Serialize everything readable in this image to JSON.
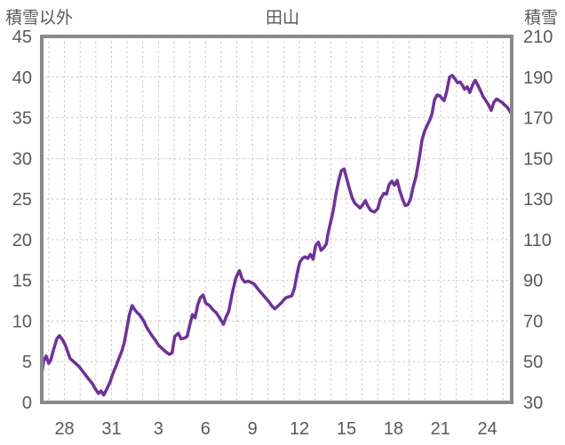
{
  "header": {
    "left_axis_title": "積雪以外",
    "chart_title": "田山",
    "right_axis_title": "積雪"
  },
  "chart_data": {
    "type": "line",
    "title": "田山",
    "grid": true,
    "legend_position": "none",
    "left_axis": {
      "title": "積雪以外",
      "range": [
        0,
        45
      ],
      "ticks": [
        45,
        40,
        35,
        30,
        25,
        20,
        15,
        10,
        5,
        0
      ]
    },
    "right_axis": {
      "title": "積雪",
      "range": [
        30,
        210
      ],
      "ticks": [
        210,
        190,
        170,
        150,
        130,
        110,
        90,
        70,
        50,
        30
      ]
    },
    "x_axis": {
      "range_days": [
        0,
        30
      ],
      "gridline_start_day": 0.45,
      "gridline_step_days": 1,
      "gridline_count": 30,
      "tick_labels": [
        "28",
        "31",
        "3",
        "6",
        "9",
        "12",
        "15",
        "18",
        "21",
        "24"
      ],
      "tick_days": [
        1.45,
        4.45,
        7.45,
        10.45,
        13.45,
        16.45,
        19.45,
        22.45,
        25.45,
        28.45
      ]
    },
    "colors": {
      "text": "#595959",
      "plot_border": "#898989",
      "gridline": "#c9c9c9",
      "line": "#7030a0",
      "background": "#ffffff"
    },
    "series": [
      {
        "name": "積雪",
        "color": "#7030a0",
        "points": [
          [
            0.0,
            3.5
          ],
          [
            0.11,
            5.0
          ],
          [
            0.28,
            5.7
          ],
          [
            0.45,
            4.8
          ],
          [
            0.57,
            5.2
          ],
          [
            0.79,
            6.7
          ],
          [
            0.96,
            7.8
          ],
          [
            1.13,
            8.2
          ],
          [
            1.36,
            7.6
          ],
          [
            1.53,
            6.9
          ],
          [
            1.81,
            5.4
          ],
          [
            2.09,
            4.9
          ],
          [
            2.38,
            4.4
          ],
          [
            2.66,
            3.7
          ],
          [
            2.94,
            3.0
          ],
          [
            3.23,
            2.3
          ],
          [
            3.4,
            1.7
          ],
          [
            3.62,
            1.1
          ],
          [
            3.79,
            1.4
          ],
          [
            3.96,
            0.9
          ],
          [
            4.19,
            1.8
          ],
          [
            4.36,
            2.5
          ],
          [
            4.53,
            3.5
          ],
          [
            4.75,
            4.5
          ],
          [
            4.92,
            5.4
          ],
          [
            5.09,
            6.2
          ],
          [
            5.26,
            7.3
          ],
          [
            5.43,
            9.0
          ],
          [
            5.6,
            10.8
          ],
          [
            5.77,
            11.9
          ],
          [
            5.94,
            11.4
          ],
          [
            6.11,
            11.0
          ],
          [
            6.23,
            10.8
          ],
          [
            6.34,
            10.5
          ],
          [
            6.51,
            10.0
          ],
          [
            6.68,
            9.3
          ],
          [
            6.9,
            8.6
          ],
          [
            7.07,
            8.1
          ],
          [
            7.3,
            7.5
          ],
          [
            7.47,
            7.0
          ],
          [
            7.7,
            6.6
          ],
          [
            7.92,
            6.2
          ],
          [
            8.15,
            5.9
          ],
          [
            8.32,
            6.1
          ],
          [
            8.49,
            8.1
          ],
          [
            8.72,
            8.5
          ],
          [
            8.89,
            7.8
          ],
          [
            9.11,
            7.9
          ],
          [
            9.28,
            8.1
          ],
          [
            9.45,
            9.5
          ],
          [
            9.62,
            10.8
          ],
          [
            9.79,
            10.4
          ],
          [
            9.96,
            12.0
          ],
          [
            10.13,
            12.9
          ],
          [
            10.3,
            13.2
          ],
          [
            10.47,
            12.2
          ],
          [
            10.7,
            11.9
          ],
          [
            10.92,
            11.4
          ],
          [
            11.15,
            11.0
          ],
          [
            11.38,
            10.3
          ],
          [
            11.6,
            9.6
          ],
          [
            11.77,
            10.5
          ],
          [
            11.94,
            11.2
          ],
          [
            12.17,
            13.5
          ],
          [
            12.39,
            15.3
          ],
          [
            12.62,
            16.2
          ],
          [
            12.79,
            15.2
          ],
          [
            12.96,
            14.8
          ],
          [
            13.19,
            14.9
          ],
          [
            13.41,
            14.7
          ],
          [
            13.58,
            14.5
          ],
          [
            13.81,
            13.9
          ],
          [
            14.04,
            13.4
          ],
          [
            14.26,
            12.9
          ],
          [
            14.49,
            12.4
          ],
          [
            14.71,
            11.8
          ],
          [
            14.88,
            11.5
          ],
          [
            15.11,
            11.9
          ],
          [
            15.28,
            12.2
          ],
          [
            15.45,
            12.6
          ],
          [
            15.62,
            12.9
          ],
          [
            15.79,
            13.0
          ],
          [
            15.96,
            13.1
          ],
          [
            16.13,
            14.0
          ],
          [
            16.3,
            15.8
          ],
          [
            16.47,
            17.2
          ],
          [
            16.64,
            17.7
          ],
          [
            16.81,
            17.9
          ],
          [
            16.98,
            17.7
          ],
          [
            17.15,
            18.2
          ],
          [
            17.32,
            17.6
          ],
          [
            17.49,
            19.3
          ],
          [
            17.66,
            19.7
          ],
          [
            17.83,
            18.7
          ],
          [
            18.0,
            19.0
          ],
          [
            18.17,
            19.5
          ],
          [
            18.28,
            20.8
          ],
          [
            18.45,
            22.2
          ],
          [
            18.62,
            23.7
          ],
          [
            18.79,
            25.7
          ],
          [
            18.96,
            27.3
          ],
          [
            19.13,
            28.5
          ],
          [
            19.3,
            28.7
          ],
          [
            19.47,
            27.5
          ],
          [
            19.64,
            26.3
          ],
          [
            19.81,
            25.2
          ],
          [
            19.98,
            24.5
          ],
          [
            20.15,
            24.2
          ],
          [
            20.32,
            23.9
          ],
          [
            20.49,
            24.3
          ],
          [
            20.66,
            24.8
          ],
          [
            20.83,
            24.1
          ],
          [
            21.0,
            23.6
          ],
          [
            21.22,
            23.4
          ],
          [
            21.45,
            23.8
          ],
          [
            21.62,
            25.0
          ],
          [
            21.84,
            25.7
          ],
          [
            22.01,
            25.6
          ],
          [
            22.18,
            26.8
          ],
          [
            22.35,
            27.2
          ],
          [
            22.52,
            26.7
          ],
          [
            22.69,
            27.3
          ],
          [
            22.86,
            26.0
          ],
          [
            23.03,
            25.0
          ],
          [
            23.2,
            24.2
          ],
          [
            23.37,
            24.3
          ],
          [
            23.54,
            25.0
          ],
          [
            23.71,
            26.5
          ],
          [
            23.88,
            27.7
          ],
          [
            24.05,
            29.5
          ],
          [
            24.17,
            30.9
          ],
          [
            24.28,
            32.3
          ],
          [
            24.45,
            33.4
          ],
          [
            24.62,
            34.1
          ],
          [
            24.79,
            34.8
          ],
          [
            24.9,
            35.4
          ],
          [
            25.07,
            37.2
          ],
          [
            25.24,
            37.8
          ],
          [
            25.41,
            37.7
          ],
          [
            25.58,
            37.3
          ],
          [
            25.69,
            37.1
          ],
          [
            25.86,
            38.3
          ],
          [
            26.03,
            40.0
          ],
          [
            26.2,
            40.2
          ],
          [
            26.37,
            39.8
          ],
          [
            26.54,
            39.3
          ],
          [
            26.71,
            39.4
          ],
          [
            26.88,
            38.9
          ],
          [
            26.99,
            38.5
          ],
          [
            27.16,
            38.8
          ],
          [
            27.33,
            38.1
          ],
          [
            27.5,
            39.0
          ],
          [
            27.67,
            39.6
          ],
          [
            27.84,
            39.0
          ],
          [
            28.01,
            38.3
          ],
          [
            28.18,
            37.6
          ],
          [
            28.35,
            37.1
          ],
          [
            28.52,
            36.6
          ],
          [
            28.69,
            35.9
          ],
          [
            28.86,
            36.9
          ],
          [
            29.03,
            37.3
          ],
          [
            29.2,
            37.1
          ],
          [
            29.37,
            36.9
          ],
          [
            29.54,
            36.6
          ],
          [
            29.71,
            36.3
          ],
          [
            29.88,
            35.8
          ],
          [
            30.0,
            35.4
          ]
        ]
      }
    ]
  }
}
